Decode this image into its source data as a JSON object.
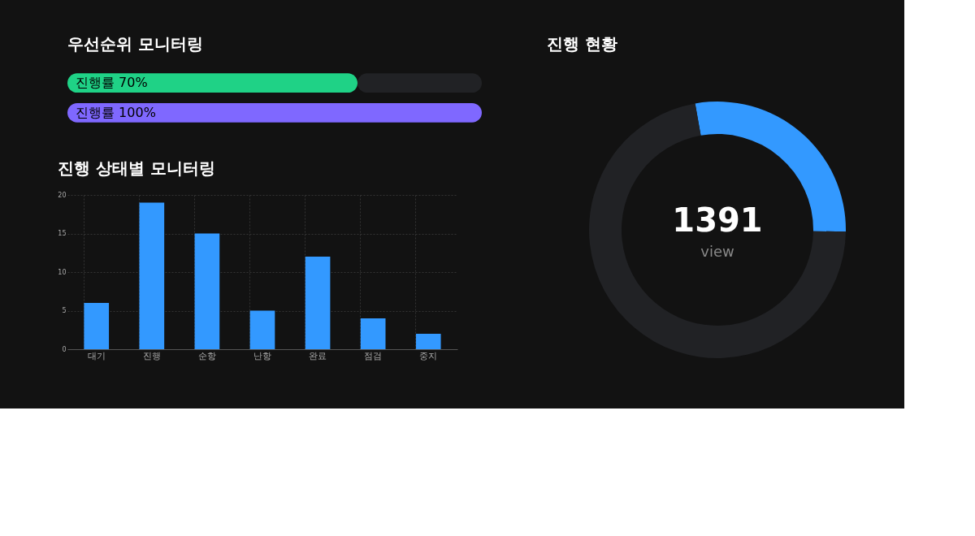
{
  "chart_data": [
    {
      "type": "bar",
      "title": "우선순위 모니터링",
      "orientation": "horizontal",
      "stacked": true,
      "categories": [
        null,
        null
      ],
      "xlim": [
        0,
        100
      ],
      "tick_labels": false,
      "series": [
        {
          "colors": [
            "#1fd286",
            "#7f68ff"
          ],
          "values": [
            70,
            100
          ],
          "value_labels": [
            "진행률 70%",
            "진행률 100%"
          ]
        },
        {
          "color": "#212225",
          "values": [
            30,
            0
          ]
        }
      ]
    },
    {
      "type": "donut",
      "title": "진행 현황",
      "categories": [
        null,
        null
      ],
      "values": [
        28,
        72
      ],
      "colors": [
        "#3399ff",
        "#212225"
      ],
      "annotations": [
        "1391",
        "view"
      ]
    },
    {
      "type": "bar",
      "title": "진행 상태별 모니터링",
      "categories": [
        "대기",
        "진행",
        "순항",
        "난항",
        "완료",
        "점검",
        "중지"
      ],
      "values": [
        6,
        19,
        15,
        5,
        12,
        4,
        2
      ],
      "color": "#3399ff",
      "ylim": [
        0,
        20
      ],
      "yticks": [
        0,
        5,
        10,
        15,
        20
      ],
      "grid": true
    }
  ]
}
